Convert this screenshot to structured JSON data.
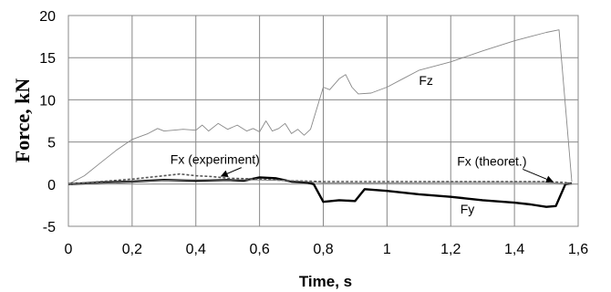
{
  "chart_data": {
    "type": "line",
    "xlabel": "Time, s",
    "ylabel": "Force, kN",
    "xlim": [
      0,
      1.6
    ],
    "ylim": [
      -5,
      20
    ],
    "xticks": [
      {
        "value": 0,
        "label": "0"
      },
      {
        "value": 0.2,
        "label": "0,2"
      },
      {
        "value": 0.4,
        "label": "0,4"
      },
      {
        "value": 0.6,
        "label": "0,6"
      },
      {
        "value": 0.8,
        "label": "0,8"
      },
      {
        "value": 1.0,
        "label": "1"
      },
      {
        "value": 1.2,
        "label": "1,2"
      },
      {
        "value": 1.4,
        "label": "1,4"
      },
      {
        "value": 1.6,
        "label": "1,6"
      }
    ],
    "yticks": [
      {
        "value": -5,
        "label": "-5"
      },
      {
        "value": 0,
        "label": "0"
      },
      {
        "value": 5,
        "label": "5"
      },
      {
        "value": 10,
        "label": "10"
      },
      {
        "value": 15,
        "label": "15"
      },
      {
        "value": 20,
        "label": "20"
      }
    ],
    "grid": true,
    "series": [
      {
        "name": "Fz",
        "color": "#888888",
        "style": "thin",
        "points": [
          [
            0,
            0
          ],
          [
            0.05,
            1
          ],
          [
            0.1,
            2.5
          ],
          [
            0.15,
            4
          ],
          [
            0.2,
            5.3
          ],
          [
            0.25,
            6
          ],
          [
            0.28,
            6.6
          ],
          [
            0.3,
            6.3
          ],
          [
            0.33,
            6.4
          ],
          [
            0.36,
            6.5
          ],
          [
            0.4,
            6.4
          ],
          [
            0.42,
            7
          ],
          [
            0.44,
            6.3
          ],
          [
            0.47,
            7.2
          ],
          [
            0.5,
            6.5
          ],
          [
            0.53,
            7
          ],
          [
            0.56,
            6.3
          ],
          [
            0.58,
            6.6
          ],
          [
            0.6,
            6.2
          ],
          [
            0.62,
            7.5
          ],
          [
            0.64,
            6.3
          ],
          [
            0.66,
            6.6
          ],
          [
            0.68,
            7.2
          ],
          [
            0.7,
            6
          ],
          [
            0.72,
            6.5
          ],
          [
            0.74,
            5.8
          ],
          [
            0.76,
            6.5
          ],
          [
            0.78,
            9
          ],
          [
            0.8,
            11.5
          ],
          [
            0.82,
            11.2
          ],
          [
            0.85,
            12.5
          ],
          [
            0.87,
            13
          ],
          [
            0.89,
            11.5
          ],
          [
            0.91,
            10.7
          ],
          [
            0.95,
            10.8
          ],
          [
            1.0,
            11.5
          ],
          [
            1.05,
            12.5
          ],
          [
            1.1,
            13.5
          ],
          [
            1.2,
            14.5
          ],
          [
            1.3,
            15.8
          ],
          [
            1.4,
            17
          ],
          [
            1.45,
            17.5
          ],
          [
            1.5,
            18
          ],
          [
            1.54,
            18.3
          ],
          [
            1.58,
            0.3
          ]
        ]
      },
      {
        "name": "Fy",
        "color": "#000000",
        "style": "thick",
        "points": [
          [
            0,
            0
          ],
          [
            0.1,
            0.2
          ],
          [
            0.2,
            0.3
          ],
          [
            0.3,
            0.5
          ],
          [
            0.4,
            0.4
          ],
          [
            0.5,
            0.5
          ],
          [
            0.55,
            0.4
          ],
          [
            0.6,
            0.8
          ],
          [
            0.65,
            0.7
          ],
          [
            0.7,
            0.3
          ],
          [
            0.75,
            0.2
          ],
          [
            0.77,
            0
          ],
          [
            0.8,
            -2.1
          ],
          [
            0.85,
            -1.9
          ],
          [
            0.9,
            -2
          ],
          [
            0.93,
            -0.6
          ],
          [
            1.0,
            -0.8
          ],
          [
            1.1,
            -1.2
          ],
          [
            1.2,
            -1.5
          ],
          [
            1.3,
            -1.9
          ],
          [
            1.4,
            -2.2
          ],
          [
            1.45,
            -2.4
          ],
          [
            1.5,
            -2.7
          ],
          [
            1.53,
            -2.6
          ],
          [
            1.56,
            0
          ],
          [
            1.58,
            0.1
          ]
        ]
      },
      {
        "name": "Fx (experiment)",
        "color": "#555555",
        "style": "dashed",
        "points": [
          [
            0,
            0
          ],
          [
            0.1,
            0.3
          ],
          [
            0.2,
            0.6
          ],
          [
            0.3,
            1.0
          ],
          [
            0.35,
            1.2
          ],
          [
            0.4,
            1.0
          ],
          [
            0.45,
            0.9
          ],
          [
            0.5,
            0.7
          ],
          [
            0.6,
            0.6
          ],
          [
            0.7,
            0.4
          ],
          [
            0.8,
            0.3
          ],
          [
            0.9,
            0.3
          ],
          [
            1.0,
            0.3
          ],
          [
            1.1,
            0.3
          ],
          [
            1.2,
            0.3
          ],
          [
            1.3,
            0.3
          ],
          [
            1.4,
            0.3
          ],
          [
            1.5,
            0.3
          ],
          [
            1.56,
            0.2
          ],
          [
            1.58,
            0
          ]
        ]
      },
      {
        "name": "Fx (theoret.)",
        "color": "#777777",
        "style": "thin",
        "points": [
          [
            0,
            0
          ],
          [
            0.1,
            0.15
          ],
          [
            0.2,
            0.3
          ],
          [
            0.3,
            0.45
          ],
          [
            0.4,
            0.5
          ],
          [
            0.5,
            0.5
          ],
          [
            0.6,
            0.5
          ],
          [
            0.7,
            0.4
          ],
          [
            0.8,
            0.15
          ],
          [
            0.9,
            0.15
          ],
          [
            1.0,
            0.15
          ],
          [
            1.2,
            0.2
          ],
          [
            1.4,
            0.2
          ],
          [
            1.5,
            0.2
          ],
          [
            1.58,
            0
          ]
        ]
      }
    ],
    "annotations": [
      {
        "name": "annotation-fz",
        "text": "Fz",
        "x": 1.1,
        "y": 11.8
      },
      {
        "name": "annotation-fx-experiment",
        "text": "Fx (experiment)",
        "x": 0.32,
        "y": 2.4,
        "arrow_to": [
          0.48,
          0.95
        ]
      },
      {
        "name": "annotation-fx-theoret",
        "text": "Fx (theoret.)",
        "x": 1.22,
        "y": 2.2,
        "arrow_to": [
          1.52,
          0.3
        ]
      },
      {
        "name": "annotation-fy",
        "text": "Fy",
        "x": 1.23,
        "y": -3.5
      }
    ]
  }
}
